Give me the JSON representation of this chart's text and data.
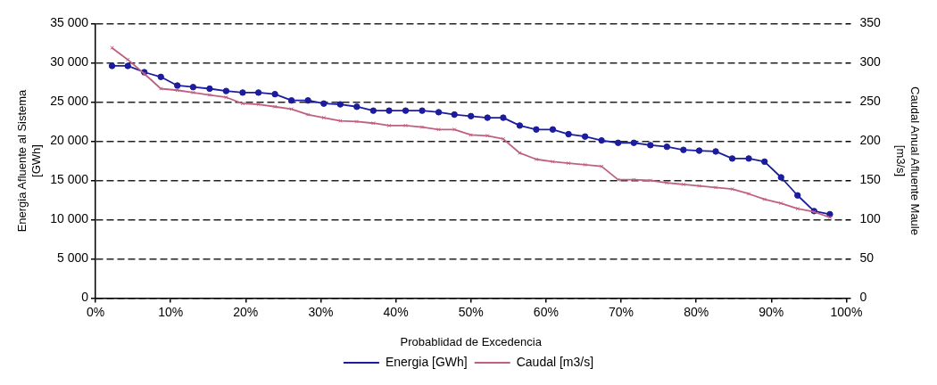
{
  "chart_data": {
    "type": "line",
    "xlabel": "Probablidad de Excedencia",
    "ylabel": "Energia Afluente al Sistema\n[GWh]",
    "y2label": "Caudal Anual Afluente Maule\n[m3/s]",
    "x": [
      2.2,
      4.3,
      6.5,
      8.7,
      10.9,
      13,
      15.2,
      17.4,
      19.6,
      21.7,
      23.9,
      26.1,
      28.3,
      30.4,
      32.6,
      34.8,
      37,
      39.1,
      41.3,
      43.5,
      45.7,
      47.8,
      50,
      52.2,
      54.3,
      56.5,
      58.7,
      60.9,
      63,
      65.2,
      67.4,
      69.6,
      71.7,
      73.9,
      76.1,
      78.3,
      80.4,
      82.6,
      84.8,
      87,
      89.1,
      91.3,
      93.5,
      95.7,
      97.8
    ],
    "series": [
      {
        "name": "Energia [GWh]",
        "color": "#1c1c9e",
        "marker": "circle",
        "values": [
          29600,
          29600,
          28800,
          28200,
          27100,
          26900,
          26700,
          26400,
          26200,
          26200,
          26000,
          25200,
          25200,
          24800,
          24700,
          24400,
          23900,
          23900,
          23900,
          23900,
          23700,
          23400,
          23200,
          23000,
          23000,
          22000,
          21500,
          21500,
          20900,
          20600,
          20100,
          19800,
          19800,
          19500,
          19300,
          18900,
          18800,
          18700,
          17800,
          17800,
          17400,
          15400,
          13100,
          11100,
          10700
        ]
      },
      {
        "name": "Caudal [m3/s]",
        "color": "#c06080",
        "marker": "cross",
        "axis": "y2",
        "values": [
          319,
          304,
          286,
          267,
          265,
          262,
          259,
          256,
          248,
          247,
          244,
          241,
          234,
          230,
          226,
          225,
          223,
          220,
          220,
          218,
          215,
          215,
          208,
          207,
          203,
          185,
          177,
          174,
          172,
          170,
          168,
          151,
          151,
          150,
          147,
          145,
          143,
          141,
          139,
          133,
          126,
          121,
          114,
          110,
          103
        ]
      }
    ],
    "xlim": [
      0,
      100
    ],
    "xticks": [
      {
        "value": 0,
        "label": "0%"
      },
      {
        "value": 10,
        "label": "10%"
      },
      {
        "value": 20,
        "label": "20%"
      },
      {
        "value": 30,
        "label": "30%"
      },
      {
        "value": 40,
        "label": "40%"
      },
      {
        "value": 50,
        "label": "50%"
      },
      {
        "value": 60,
        "label": "60%"
      },
      {
        "value": 70,
        "label": "70%"
      },
      {
        "value": 80,
        "label": "80%"
      },
      {
        "value": 90,
        "label": "90%"
      },
      {
        "value": 100,
        "label": "100%"
      }
    ],
    "ylim": [
      0,
      35000
    ],
    "yticks": [
      0,
      {
        "value": 5000,
        "label": "5 000"
      },
      {
        "value": 10000,
        "label": "10 000"
      },
      {
        "value": 15000,
        "label": "15 000"
      },
      {
        "value": 20000,
        "label": "20 000"
      },
      {
        "value": 25000,
        "label": "25 000"
      },
      {
        "value": 30000,
        "label": "30 000"
      },
      {
        "value": 35000,
        "label": "35 000"
      }
    ],
    "y2lim": [
      0,
      350
    ],
    "y2ticks": [
      0,
      50,
      100,
      150,
      200,
      250,
      300,
      350
    ],
    "grid": "y",
    "legend": "bottom",
    "line_style": "solid"
  }
}
